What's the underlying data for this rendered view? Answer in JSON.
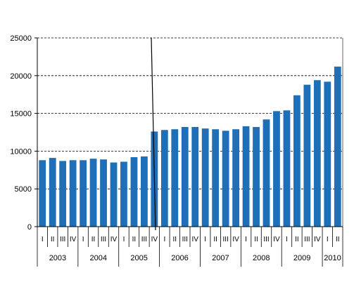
{
  "chart_data": {
    "type": "bar",
    "title": "",
    "xlabel": "",
    "ylabel": "",
    "ylim": [
      0,
      25000
    ],
    "y_ticks": [
      0,
      5000,
      10000,
      15000,
      20000,
      25000
    ],
    "y_tick_labels": [
      "0",
      "5000",
      "10000",
      "15000",
      "20000",
      "25000"
    ],
    "grid": "horizontal dashed",
    "legend": "none",
    "bar_color": "#1f6fb8",
    "annotation": "series break line between 2005 Q4 and 2006 Q1",
    "categories": [
      "I",
      "II",
      "III",
      "IV",
      "I",
      "II",
      "III",
      "IV",
      "I",
      "II",
      "III",
      "IV",
      "I",
      "II",
      "III",
      "IV",
      "I",
      "II",
      "III",
      "IV",
      "I",
      "II",
      "III",
      "IV",
      "I",
      "II",
      "III",
      "IV",
      "I",
      "II"
    ],
    "years": [
      {
        "label": "2003",
        "quarters": 4
      },
      {
        "label": "2004",
        "quarters": 4
      },
      {
        "label": "2005",
        "quarters": 4
      },
      {
        "label": "2006",
        "quarters": 4
      },
      {
        "label": "2007",
        "quarters": 4
      },
      {
        "label": "2008",
        "quarters": 4
      },
      {
        "label": "2009",
        "quarters": 4
      },
      {
        "label": "2010",
        "quarters": 2
      }
    ],
    "values": [
      8800,
      9100,
      8700,
      8800,
      8800,
      9000,
      8900,
      8500,
      8600,
      9200,
      9300,
      12600,
      12800,
      12900,
      13200,
      13200,
      13000,
      12900,
      12700,
      12900,
      13300,
      13200,
      14200,
      15300,
      15400,
      17400,
      18800,
      19400,
      19200,
      21200
    ]
  }
}
